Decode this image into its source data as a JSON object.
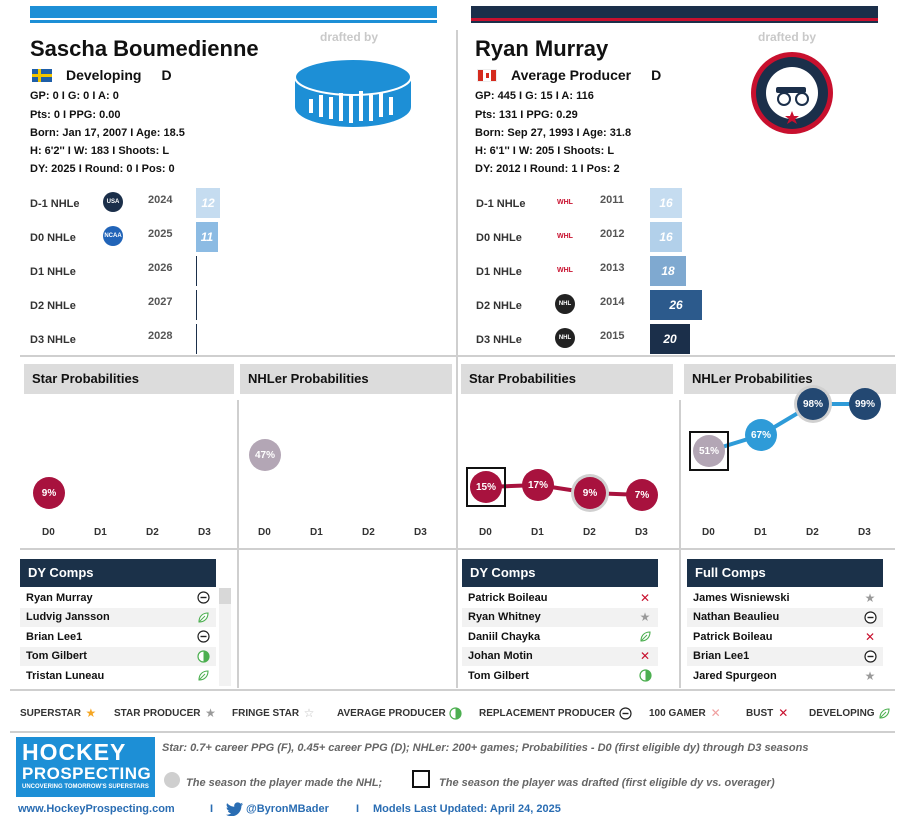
{
  "left": {
    "name": "Sascha Boumedienne",
    "drafted_by": "drafted by",
    "flag": "sweden",
    "type": "Developing",
    "position": "D",
    "stats": {
      "line1": "GP: 0 I G: 0 I A: 0",
      "line2": "Pts: 0 I PPG: 0.00",
      "line3": "Born: Jan 17, 2007 I Age: 18.5",
      "line4": "H: 6'2'' I W: 183 I Shoots: L",
      "line5": "DY: 2025 I Round: 0 I Pos: 0"
    },
    "team_logo": "generic-puck-logo",
    "nhle": [
      {
        "label": "D-1 NHLe",
        "league": "USA",
        "year": "2024",
        "value": "12",
        "fraction": 0.12
      },
      {
        "label": "D0 NHLe",
        "league": "NCAA",
        "year": "2025",
        "value": "11",
        "fraction": 0.11
      },
      {
        "label": "D1 NHLe",
        "league": "",
        "year": "2026",
        "value": "",
        "fraction": 0
      },
      {
        "label": "D2 NHLe",
        "league": "",
        "year": "2027",
        "value": "",
        "fraction": 0
      },
      {
        "label": "D3 NHLe",
        "league": "",
        "year": "2028",
        "value": "",
        "fraction": 0
      }
    ],
    "star_title": "Star Probabilities",
    "star_probs": [
      {
        "d": "D0",
        "value": "9%"
      }
    ],
    "nhler_title": "NHLer Probabilities",
    "nhler_probs": [
      {
        "d": "D0",
        "value": "47%"
      }
    ],
    "dlabels": [
      "D0",
      "D1",
      "D2",
      "D3"
    ],
    "dy_comps_title": "DY Comps",
    "dy_comps": [
      {
        "name": "Ryan Murray",
        "icon": "replacement-producer-icon"
      },
      {
        "name": "Ludvig Jansson",
        "icon": "developing-icon"
      },
      {
        "name": "Brian Lee1",
        "icon": "replacement-producer-icon"
      },
      {
        "name": "Tom Gilbert",
        "icon": "average-producer-icon"
      },
      {
        "name": "Tristan Luneau",
        "icon": "developing-icon"
      }
    ]
  },
  "right": {
    "name": "Ryan Murray",
    "drafted_by": "drafted by",
    "flag": "canada",
    "type": "Average Producer",
    "position": "D",
    "stats": {
      "line1": "GP: 445 I G: 15 I A: 116",
      "line2": "Pts: 131 I PPG: 0.29",
      "line3": "Born: Sep 27, 1993 I Age: 31.8",
      "line4": "H: 6'1'' I W: 205 I Shoots: L",
      "line5": "DY: 2012 I Round: 1 I Pos: 2"
    },
    "team_logo": "columbus-blue-jackets-logo",
    "nhle": [
      {
        "label": "D-1 NHLe",
        "league": "WHL",
        "year": "2011",
        "value": "16",
        "fraction": 0.16
      },
      {
        "label": "D0 NHLe",
        "league": "WHL",
        "year": "2012",
        "value": "16",
        "fraction": 0.16
      },
      {
        "label": "D1 NHLe",
        "league": "WHL",
        "year": "2013",
        "value": "18",
        "fraction": 0.18
      },
      {
        "label": "D2 NHLe",
        "league": "NHL",
        "year": "2014",
        "value": "26",
        "fraction": 0.26
      },
      {
        "label": "D3 NHLe",
        "league": "NHL",
        "year": "2015",
        "value": "20",
        "fraction": 0.2
      }
    ],
    "star_title": "Star Probabilities",
    "star_probs": [
      {
        "d": "D0",
        "value": "15%",
        "drafted": true
      },
      {
        "d": "D1",
        "value": "17%"
      },
      {
        "d": "D2",
        "value": "9%",
        "made_nhl": true
      },
      {
        "d": "D3",
        "value": "7%"
      }
    ],
    "nhler_title": "NHLer Probabilities",
    "nhler_probs": [
      {
        "d": "D0",
        "value": "51%",
        "drafted": true
      },
      {
        "d": "D1",
        "value": "67%"
      },
      {
        "d": "D2",
        "value": "98%",
        "made_nhl": true
      },
      {
        "d": "D3",
        "value": "99%"
      }
    ],
    "dlabels": [
      "D0",
      "D1",
      "D2",
      "D3"
    ],
    "dy_comps_title": "DY Comps",
    "dy_comps": [
      {
        "name": "Patrick Boileau",
        "icon": "bust-icon"
      },
      {
        "name": "Ryan Whitney",
        "icon": "star-producer-icon"
      },
      {
        "name": "Daniil Chayka",
        "icon": "developing-icon"
      },
      {
        "name": "Johan Motin",
        "icon": "bust-icon"
      },
      {
        "name": "Tom Gilbert",
        "icon": "average-producer-icon"
      }
    ],
    "full_comps_title": "Full Comps",
    "full_comps": [
      {
        "name": "James Wisniewski",
        "icon": "star-producer-icon"
      },
      {
        "name": "Nathan Beaulieu",
        "icon": "replacement-producer-icon"
      },
      {
        "name": "Patrick Boileau",
        "icon": "bust-icon"
      },
      {
        "name": "Brian Lee1",
        "icon": "replacement-producer-icon"
      },
      {
        "name": "Jared Spurgeon",
        "icon": "star-producer-icon"
      }
    ]
  },
  "legend": [
    {
      "label": "SUPERSTAR",
      "icon": "superstar-icon"
    },
    {
      "label": "STAR PRODUCER",
      "icon": "star-producer-icon"
    },
    {
      "label": "FRINGE STAR",
      "icon": "fringe-star-icon"
    },
    {
      "label": "AVERAGE PRODUCER",
      "icon": "average-producer-icon"
    },
    {
      "label": "REPLACEMENT PRODUCER",
      "icon": "replacement-producer-icon"
    },
    {
      "label": "100 GAMER",
      "icon": "100-gamer-icon"
    },
    {
      "label": "BUST",
      "icon": "bust-icon"
    },
    {
      "label": "DEVELOPING",
      "icon": "developing-icon"
    }
  ],
  "brand": {
    "line1": "HOCKEY",
    "line2": "PROSPECTING",
    "tagline": "UNCOVERING TOMORROW'S SUPERSTARS"
  },
  "notes": {
    "definition": "Star: 0.7+ career PPG (F), 0.45+ career PPG (D); NHLer: 200+ games; Probabilities - D0 (first eligible dy) through D3 seasons",
    "made_nhl": "The season the player made the NHL;",
    "drafted": "The season the player was drafted (first eligible dy vs. overager)"
  },
  "footer": {
    "website": "www.HockeyProspecting.com",
    "separator": "I",
    "twitter": "@ByronMBader",
    "updated": "Models Last Updated: April 24, 2025"
  },
  "colors": {
    "left_accent": "#1d8fd6",
    "right_navy": "#1b2f4a",
    "right_red": "#c8102e",
    "star_red": "#a8123e",
    "nhler_grey": "#b3a6b5",
    "nhler_blue": "#2e9bd8",
    "nhler_navy": "#234872"
  }
}
